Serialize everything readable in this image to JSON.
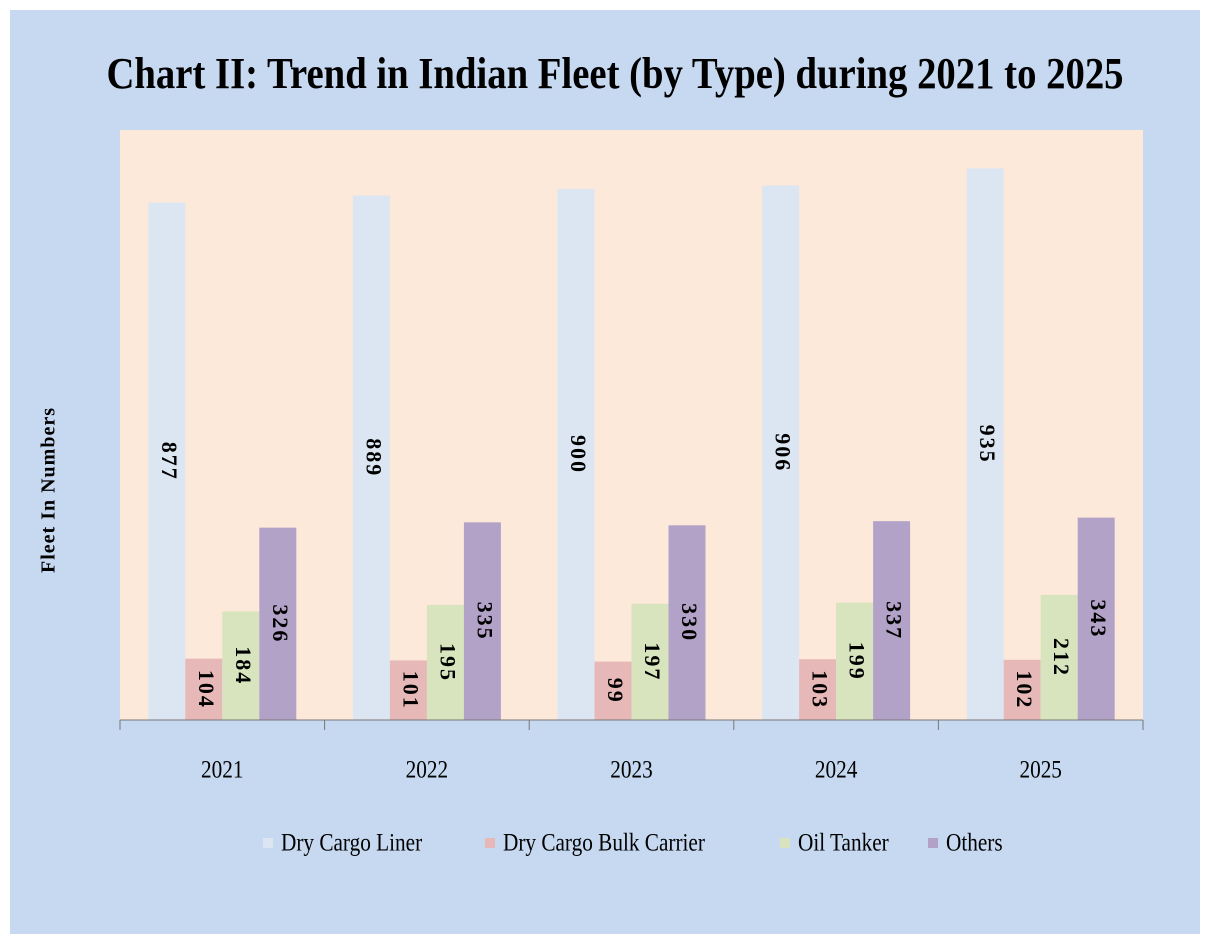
{
  "chart_data": {
    "type": "bar",
    "title": "Chart II: Trend in Indian Fleet (by Type) during 2021 to 2025",
    "y_label": "Fleet In Numbers",
    "categories": [
      "2021",
      "2022",
      "2023",
      "2024",
      "2025"
    ],
    "series": [
      {
        "name": "Dry Cargo Liner",
        "color": "#dce6f2",
        "values": [
          877,
          889,
          900,
          906,
          935
        ]
      },
      {
        "name": "Dry Cargo Bulk Carrier",
        "color": "#e6b9b8",
        "values": [
          104,
          101,
          99,
          103,
          102
        ]
      },
      {
        "name": "Oil Tanker",
        "color": "#d7e4bd",
        "values": [
          184,
          195,
          197,
          199,
          212
        ]
      },
      {
        "name": "Others",
        "color": "#b3a2c7",
        "values": [
          326,
          335,
          330,
          337,
          343
        ]
      }
    ],
    "ylim": [
      0,
      1000
    ],
    "legend": "bottom"
  }
}
